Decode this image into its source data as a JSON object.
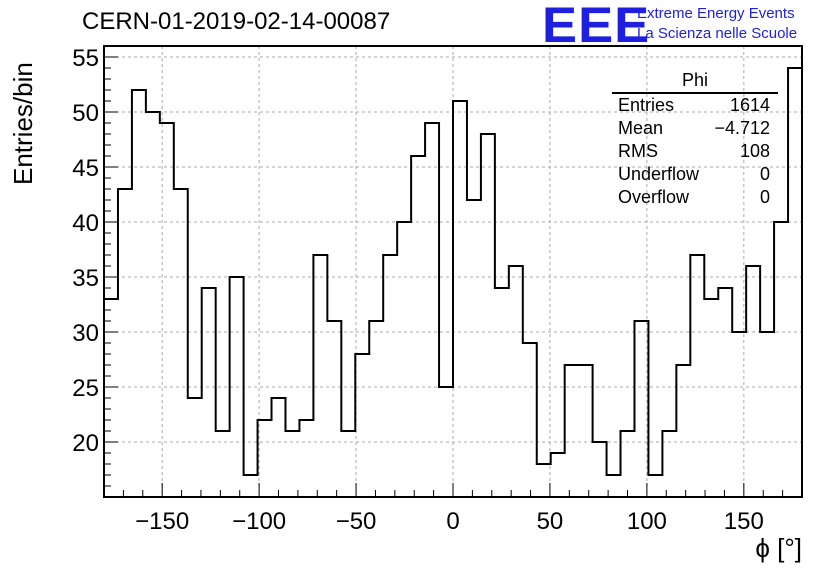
{
  "title": "CERN-01-2019-02-14-00087",
  "logo": {
    "mark": "EEE",
    "line1": "Extreme Energy Events",
    "line2": "La Scienza nelle Scuole",
    "color": "#1f1fe0"
  },
  "stats_box": {
    "name": "Phi",
    "rows": [
      {
        "label": "Entries",
        "value": "1614"
      },
      {
        "label": "Mean",
        "value": "−4.712"
      },
      {
        "label": "RMS",
        "value": "108"
      },
      {
        "label": "Underflow",
        "value": "0"
      },
      {
        "label": "Overflow",
        "value": "0"
      }
    ]
  },
  "chart_data": {
    "type": "bar",
    "style": "histogram-step",
    "xlabel": "ϕ [°]",
    "ylabel": "Entries/bin",
    "xlim": [
      -180,
      180
    ],
    "ylim": [
      15,
      56
    ],
    "bin_width": 7.2,
    "x_ticks": [
      -150,
      -100,
      -50,
      0,
      50,
      100,
      150
    ],
    "x_tick_labels": [
      "−150",
      "−100",
      "−50",
      "0",
      "50",
      "100",
      "150"
    ],
    "y_ticks": [
      20,
      25,
      30,
      35,
      40,
      45,
      50,
      55
    ],
    "y_tick_labels": [
      "20",
      "25",
      "30",
      "35",
      "40",
      "45",
      "50",
      "55"
    ],
    "grid": true,
    "values": [
      33,
      43,
      52,
      50,
      49,
      43,
      24,
      34,
      21,
      35,
      17,
      22,
      24,
      21,
      22,
      37,
      31,
      21,
      28,
      31,
      37,
      40,
      46,
      49,
      25,
      51,
      42,
      48,
      34,
      36,
      29,
      18,
      19,
      27,
      27,
      20,
      17,
      21,
      31,
      17,
      21,
      27,
      37,
      33,
      34,
      30,
      36,
      30,
      40,
      54
    ]
  }
}
